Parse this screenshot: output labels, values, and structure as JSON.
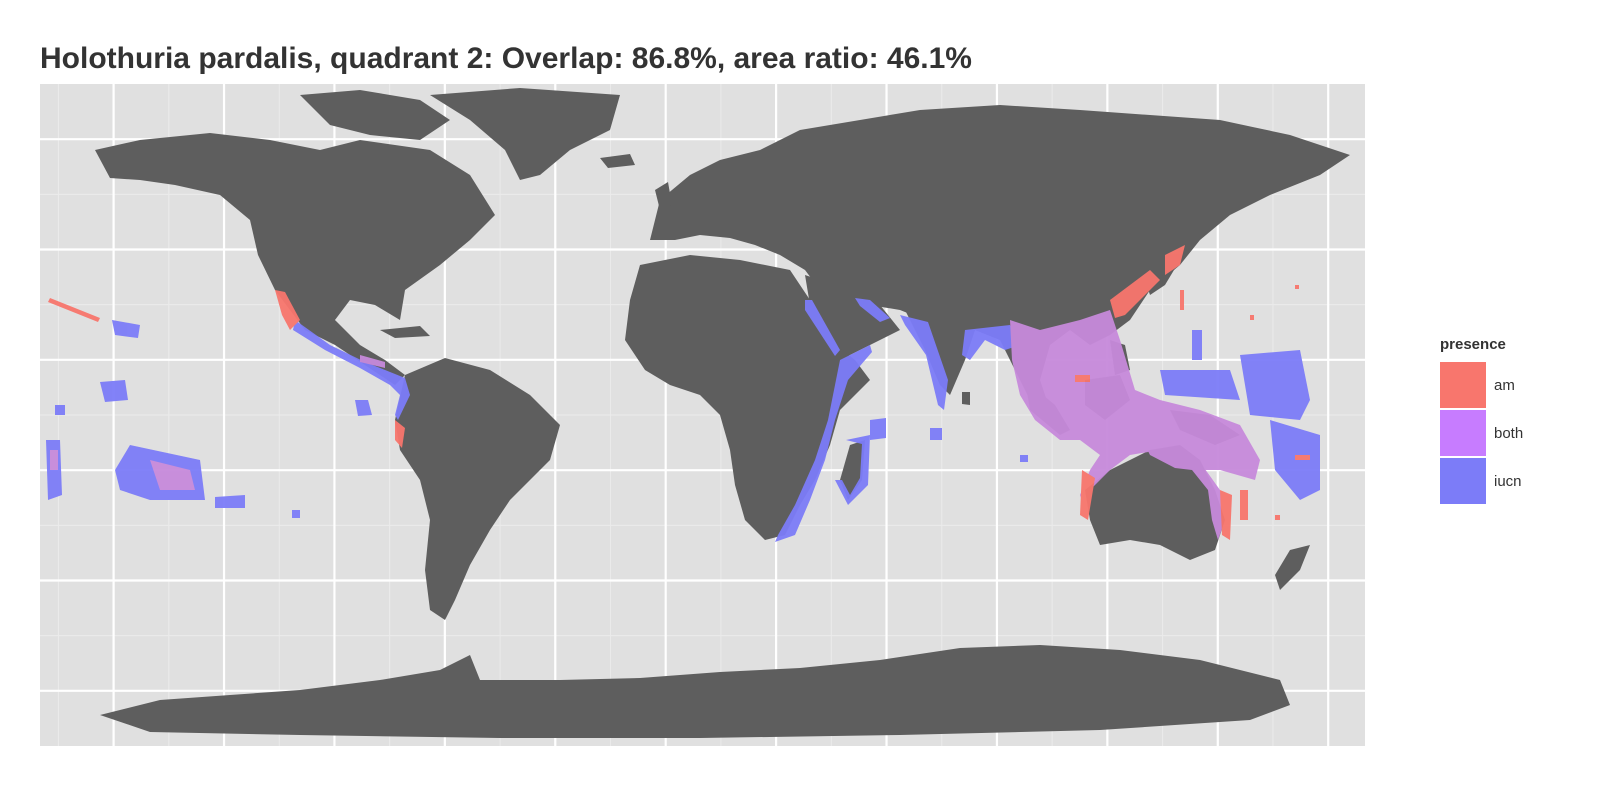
{
  "title": "Holothuria pardalis, quadrant 2: Overlap: 86.8%, area ratio: 46.1%",
  "legend": {
    "title": "presence",
    "items": [
      {
        "label": "am",
        "color": "#F8766D"
      },
      {
        "label": "both",
        "color": "#C77CFF"
      },
      {
        "label": "iucn",
        "color": "#7C7CF8"
      }
    ]
  },
  "colors": {
    "panel_background": "#E0E0E0",
    "land": "#5E5E5E",
    "grid_major": "#FFFFFF",
    "grid_minor": "#EBEBEB",
    "am": "#F8766D",
    "both": "#C78ADB",
    "iucn": "#7C7CF8"
  },
  "map": {
    "projection": "equirectangular",
    "lon_range": [
      -180,
      180
    ],
    "lat_range": [
      -90,
      90
    ],
    "graticule_major_lon": [
      -160,
      -130,
      -100,
      -70,
      -40,
      -10,
      20,
      50,
      80,
      110,
      140,
      170
    ],
    "graticule_major_lat": [
      -75,
      -45,
      -15,
      15,
      45,
      75
    ],
    "graticule_minor_lon": [
      -175,
      -145,
      -115,
      -85,
      -55,
      -25,
      5,
      35,
      65,
      95,
      125,
      155
    ],
    "graticule_minor_lat": [
      -60,
      -30,
      0,
      30,
      60
    ]
  }
}
